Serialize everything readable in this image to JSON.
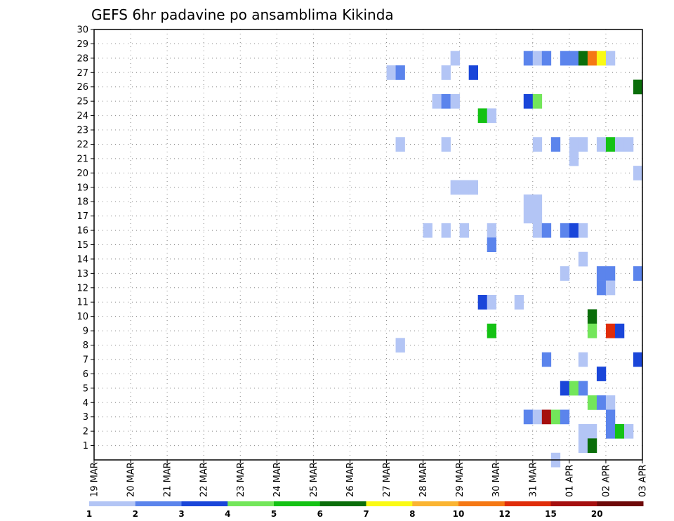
{
  "chart_data": {
    "type": "heatmap",
    "title": "GEFS 6hr padavine po ansamblima Kikinda",
    "xlabel": "",
    "ylabel": "",
    "x_tick_labels": [
      "19 MAR",
      "20 MAR",
      "21 MAR",
      "22 MAR",
      "23 MAR",
      "24 MAR",
      "25 MAR",
      "26 MAR",
      "27 MAR",
      "28 MAR",
      "29 MAR",
      "30 MAR",
      "31 MAR",
      "01 APR",
      "02 APR",
      "03 APR"
    ],
    "y_range": [
      0,
      30
    ],
    "y_ticks": [
      1,
      2,
      3,
      4,
      5,
      6,
      7,
      8,
      9,
      10,
      11,
      12,
      13,
      14,
      15,
      16,
      17,
      18,
      19,
      20,
      21,
      22,
      23,
      24,
      25,
      26,
      27,
      28,
      29,
      30
    ],
    "x_range_days": [
      0,
      15
    ],
    "grid": true,
    "colorbar": {
      "placement": "bottom",
      "labels": [
        "1",
        "2",
        "3",
        "4",
        "5",
        "6",
        "7",
        "8",
        "10",
        "12",
        "15",
        "20"
      ],
      "colors": [
        "#b3c5f5",
        "#5b84ec",
        "#1a46d9",
        "#73e65a",
        "#14c214",
        "#0a6e0a",
        "#fafa14",
        "#fab432",
        "#f57814",
        "#e02d0a",
        "#a50f0f",
        "#6e0808"
      ]
    },
    "cells_note": "each cell: [member, day offset from 19 MAR 00Z, color class index 0-11]",
    "cells": [
      [
        27,
        8.0,
        0
      ],
      [
        27,
        8.25,
        1
      ],
      [
        27,
        9.5,
        0
      ],
      [
        27,
        10.25,
        2
      ],
      [
        28,
        9.75,
        0
      ],
      [
        28,
        11.75,
        1
      ],
      [
        28,
        12.0,
        0
      ],
      [
        28,
        12.25,
        1
      ],
      [
        28,
        12.75,
        1
      ],
      [
        28,
        13.0,
        1
      ],
      [
        28,
        13.25,
        5
      ],
      [
        28,
        13.5,
        8
      ],
      [
        28,
        13.75,
        6
      ],
      [
        28,
        14.0,
        0
      ],
      [
        26,
        14.75,
        5
      ],
      [
        25,
        9.25,
        0
      ],
      [
        25,
        9.5,
        1
      ],
      [
        25,
        9.75,
        0
      ],
      [
        25,
        11.75,
        2
      ],
      [
        25,
        12.0,
        3
      ],
      [
        24,
        10.5,
        4
      ],
      [
        24,
        10.75,
        0
      ],
      [
        22,
        8.25,
        0
      ],
      [
        22,
        9.5,
        0
      ],
      [
        22,
        12.0,
        0
      ],
      [
        22,
        12.5,
        1
      ],
      [
        22,
        13.0,
        0
      ],
      [
        22,
        13.25,
        0
      ],
      [
        22,
        13.75,
        0
      ],
      [
        22,
        14.0,
        4
      ],
      [
        22,
        14.25,
        0
      ],
      [
        22,
        14.5,
        0
      ],
      [
        21,
        13.0,
        0
      ],
      [
        20,
        14.75,
        0
      ],
      [
        19,
        9.75,
        0
      ],
      [
        19,
        10.0,
        0
      ],
      [
        19,
        10.25,
        0
      ],
      [
        18,
        11.75,
        0
      ],
      [
        18,
        12.0,
        0
      ],
      [
        17,
        11.75,
        0
      ],
      [
        17,
        12.0,
        0
      ],
      [
        16,
        9.0,
        0
      ],
      [
        16,
        9.5,
        0
      ],
      [
        16,
        10.0,
        0
      ],
      [
        16,
        10.75,
        0
      ],
      [
        16,
        12.0,
        0
      ],
      [
        16,
        12.25,
        1
      ],
      [
        16,
        12.75,
        1
      ],
      [
        16,
        13.0,
        2
      ],
      [
        16,
        13.25,
        0
      ],
      [
        15,
        10.75,
        1
      ],
      [
        14,
        13.25,
        0
      ],
      [
        13,
        12.75,
        0
      ],
      [
        13,
        13.75,
        1
      ],
      [
        13,
        14.75,
        1
      ],
      [
        12,
        13.75,
        1
      ],
      [
        13,
        14.0,
        1
      ],
      [
        12,
        14.0,
        0
      ],
      [
        11,
        10.5,
        2
      ],
      [
        11,
        10.75,
        0
      ],
      [
        11,
        11.5,
        0
      ],
      [
        10,
        13.5,
        5
      ],
      [
        9,
        10.75,
        4
      ],
      [
        9,
        13.5,
        3
      ],
      [
        9,
        14.0,
        9
      ],
      [
        9,
        14.25,
        2
      ],
      [
        8,
        8.25,
        0
      ],
      [
        7,
        12.25,
        1
      ],
      [
        7,
        13.25,
        0
      ],
      [
        7,
        14.75,
        2
      ],
      [
        6,
        13.75,
        2
      ],
      [
        5,
        12.75,
        2
      ],
      [
        5,
        13.0,
        3
      ],
      [
        5,
        13.25,
        1
      ],
      [
        4,
        13.5,
        3
      ],
      [
        4,
        13.75,
        1
      ],
      [
        4,
        14.0,
        0
      ],
      [
        3,
        11.75,
        1
      ],
      [
        3,
        12.0,
        0
      ],
      [
        3,
        12.25,
        10
      ],
      [
        3,
        12.5,
        3
      ],
      [
        3,
        12.75,
        1
      ],
      [
        3,
        14.0,
        1
      ],
      [
        2,
        13.25,
        0
      ],
      [
        2,
        13.5,
        0
      ],
      [
        2,
        14.0,
        1
      ],
      [
        2,
        14.25,
        4
      ],
      [
        2,
        14.5,
        0
      ],
      [
        1,
        13.25,
        0
      ],
      [
        1,
        13.5,
        5
      ],
      [
        0,
        12.5,
        0
      ]
    ]
  }
}
